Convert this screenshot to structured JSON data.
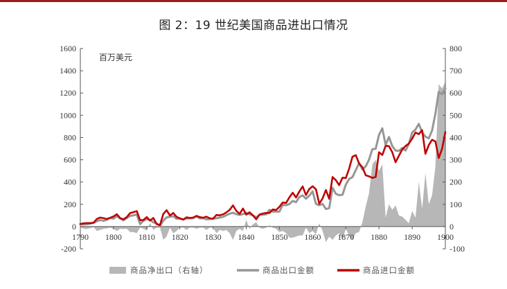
{
  "title": "图 2：19 世纪美国商品进出口情况",
  "colors": {
    "top_rule": "#9e1b1b",
    "net_exports": "#b7b7b7",
    "exports": "#969696",
    "imports": "#c00000",
    "axis": "#555555"
  },
  "chart_data": {
    "type": "line",
    "title": "图 2：19 世纪美国商品进出口情况",
    "unit_label": "百万美元",
    "grid": false,
    "legend_position": "bottom",
    "x_range": [
      1790,
      1900
    ],
    "x_ticks": [
      1790,
      1800,
      1810,
      1820,
      1830,
      1840,
      1850,
      1860,
      1870,
      1880,
      1890,
      1900
    ],
    "y_left": {
      "range": [
        -200,
        1600
      ],
      "ticks": [
        -200,
        0,
        200,
        400,
        600,
        800,
        1000,
        1200,
        1400,
        1600
      ]
    },
    "y_right": {
      "range": [
        -100,
        800
      ],
      "ticks": [
        -100,
        0,
        100,
        200,
        300,
        400,
        500,
        600,
        700,
        800
      ]
    },
    "series": [
      {
        "name": "商品净出口（右轴）",
        "type": "area",
        "axis": "right",
        "x": [
          1790,
          1791,
          1792,
          1793,
          1794,
          1795,
          1796,
          1797,
          1798,
          1799,
          1800,
          1801,
          1802,
          1803,
          1804,
          1805,
          1806,
          1807,
          1808,
          1809,
          1810,
          1811,
          1812,
          1813,
          1814,
          1815,
          1816,
          1817,
          1818,
          1819,
          1820,
          1821,
          1822,
          1823,
          1824,
          1825,
          1826,
          1827,
          1828,
          1829,
          1830,
          1831,
          1832,
          1833,
          1834,
          1835,
          1836,
          1837,
          1838,
          1839,
          1840,
          1841,
          1842,
          1843,
          1844,
          1845,
          1846,
          1847,
          1848,
          1849,
          1850,
          1851,
          1852,
          1853,
          1854,
          1855,
          1856,
          1857,
          1858,
          1859,
          1860,
          1861,
          1862,
          1863,
          1864,
          1865,
          1866,
          1867,
          1868,
          1869,
          1870,
          1871,
          1872,
          1873,
          1874,
          1875,
          1876,
          1877,
          1878,
          1879,
          1880,
          1881,
          1882,
          1883,
          1884,
          1885,
          1886,
          1887,
          1888,
          1889,
          1890,
          1891,
          1892,
          1893,
          1894,
          1895,
          1896,
          1897,
          1898,
          1899,
          1900
        ],
        "values": [
          -3,
          -10,
          -11,
          -7,
          -3,
          -20,
          -15,
          -10,
          -8,
          -5,
          -10,
          -20,
          -10,
          -11,
          -10,
          -25,
          -25,
          -30,
          -5,
          -10,
          -18,
          15,
          -15,
          -5,
          -5,
          -60,
          -45,
          -5,
          -30,
          -20,
          -5,
          -5,
          -15,
          -5,
          -5,
          -10,
          -5,
          -5,
          -15,
          -5,
          -5,
          -30,
          -15,
          -20,
          -15,
          -30,
          -60,
          -20,
          -10,
          -20,
          30,
          -10,
          10,
          20,
          -5,
          -10,
          -5,
          5,
          -5,
          -10,
          -25,
          -20,
          -30,
          -50,
          -50,
          -45,
          -40,
          -40,
          -5,
          -30,
          -20,
          -35,
          15,
          -20,
          -70,
          -45,
          -60,
          -40,
          -30,
          -60,
          -10,
          -40,
          -60,
          -30,
          -25,
          20,
          90,
          150,
          280,
          300,
          250,
          280,
          40,
          100,
          75,
          95,
          50,
          45,
          30,
          15,
          70,
          40,
          200,
          80,
          240,
          100,
          140,
          270,
          640,
          620,
          650
        ]
      },
      {
        "name": "商品出口金额",
        "type": "line",
        "axis": "left",
        "x": [
          1790,
          1791,
          1792,
          1793,
          1794,
          1795,
          1796,
          1797,
          1798,
          1799,
          1800,
          1801,
          1802,
          1803,
          1804,
          1805,
          1806,
          1807,
          1808,
          1809,
          1810,
          1811,
          1812,
          1813,
          1814,
          1815,
          1816,
          1817,
          1818,
          1819,
          1820,
          1821,
          1822,
          1823,
          1824,
          1825,
          1826,
          1827,
          1828,
          1829,
          1830,
          1831,
          1832,
          1833,
          1834,
          1835,
          1836,
          1837,
          1838,
          1839,
          1840,
          1841,
          1842,
          1843,
          1844,
          1845,
          1846,
          1847,
          1848,
          1849,
          1850,
          1851,
          1852,
          1853,
          1854,
          1855,
          1856,
          1857,
          1858,
          1859,
          1860,
          1861,
          1862,
          1863,
          1864,
          1865,
          1866,
          1867,
          1868,
          1869,
          1870,
          1871,
          1872,
          1873,
          1874,
          1875,
          1876,
          1877,
          1878,
          1879,
          1880,
          1881,
          1882,
          1883,
          1884,
          1885,
          1886,
          1887,
          1888,
          1889,
          1890,
          1891,
          1892,
          1893,
          1894,
          1895,
          1896,
          1897,
          1898,
          1899,
          1900
        ],
        "values": [
          20,
          19,
          21,
          26,
          33,
          48,
          59,
          51,
          61,
          78,
          71,
          94,
          72,
          56,
          77,
          95,
          101,
          108,
          22,
          52,
          67,
          61,
          38,
          27,
          7,
          53,
          82,
          88,
          93,
          70,
          70,
          65,
          72,
          74,
          75,
          91,
          73,
          75,
          65,
          67,
          70,
          75,
          81,
          87,
          102,
          115,
          124,
          111,
          104,
          112,
          123,
          111,
          100,
          82,
          105,
          106,
          110,
          150,
          134,
          134,
          135,
          196,
          192,
          202,
          230,
          219,
          266,
          280,
          250,
          278,
          316,
          204,
          191,
          204,
          158,
          166,
          349,
          294,
          282,
          286,
          376,
          428,
          444,
          506,
          570,
          513,
          541,
          602,
          695,
          699,
          823,
          883,
          733,
          805,
          723,
          683,
          680,
          706,
          683,
          743,
          845,
          872,
          923,
          847,
          807,
          793,
          863,
          1014,
          1211,
          1189,
          1241
        ]
      },
      {
        "name": "商品进口金额",
        "type": "line",
        "axis": "left",
        "x": [
          1790,
          1791,
          1792,
          1793,
          1794,
          1795,
          1796,
          1797,
          1798,
          1799,
          1800,
          1801,
          1802,
          1803,
          1804,
          1805,
          1806,
          1807,
          1808,
          1809,
          1810,
          1811,
          1812,
          1813,
          1814,
          1815,
          1816,
          1817,
          1818,
          1819,
          1820,
          1821,
          1822,
          1823,
          1824,
          1825,
          1826,
          1827,
          1828,
          1829,
          1830,
          1831,
          1832,
          1833,
          1834,
          1835,
          1836,
          1837,
          1838,
          1839,
          1840,
          1841,
          1842,
          1843,
          1844,
          1845,
          1846,
          1847,
          1848,
          1849,
          1850,
          1851,
          1852,
          1853,
          1854,
          1855,
          1856,
          1857,
          1858,
          1859,
          1860,
          1861,
          1862,
          1863,
          1864,
          1865,
          1866,
          1867,
          1868,
          1869,
          1870,
          1871,
          1872,
          1873,
          1874,
          1875,
          1876,
          1877,
          1878,
          1879,
          1880,
          1881,
          1882,
          1883,
          1884,
          1885,
          1886,
          1887,
          1888,
          1889,
          1890,
          1891,
          1892,
          1893,
          1894,
          1895,
          1896,
          1897,
          1898,
          1899,
          1900
        ],
        "values": [
          23,
          29,
          31,
          31,
          35,
          69,
          81,
          75,
          68,
          79,
          91,
          111,
          76,
          65,
          85,
          121,
          129,
          139,
          57,
          59,
          85,
          53,
          77,
          22,
          13,
          113,
          147,
          99,
          122,
          87,
          74,
          62,
          83,
          77,
          81,
          96,
          85,
          79,
          89,
          74,
          71,
          104,
          101,
          109,
          127,
          150,
          190,
          141,
          114,
          162,
          107,
          128,
          100,
          65,
          108,
          117,
          122,
          122,
          154,
          148,
          178,
          216,
          212,
          263,
          304,
          261,
          315,
          361,
          283,
          338,
          362,
          335,
          205,
          253,
          329,
          249,
          445,
          417,
          372,
          439,
          436,
          520,
          627,
          642,
          567,
          533,
          461,
          451,
          437,
          446,
          668,
          643,
          725,
          723,
          668,
          578,
          636,
          692,
          724,
          746,
          790,
          845,
          830,
          866,
          654,
          732,
          780,
          765,
          616,
          697,
          850
        ]
      }
    ]
  }
}
